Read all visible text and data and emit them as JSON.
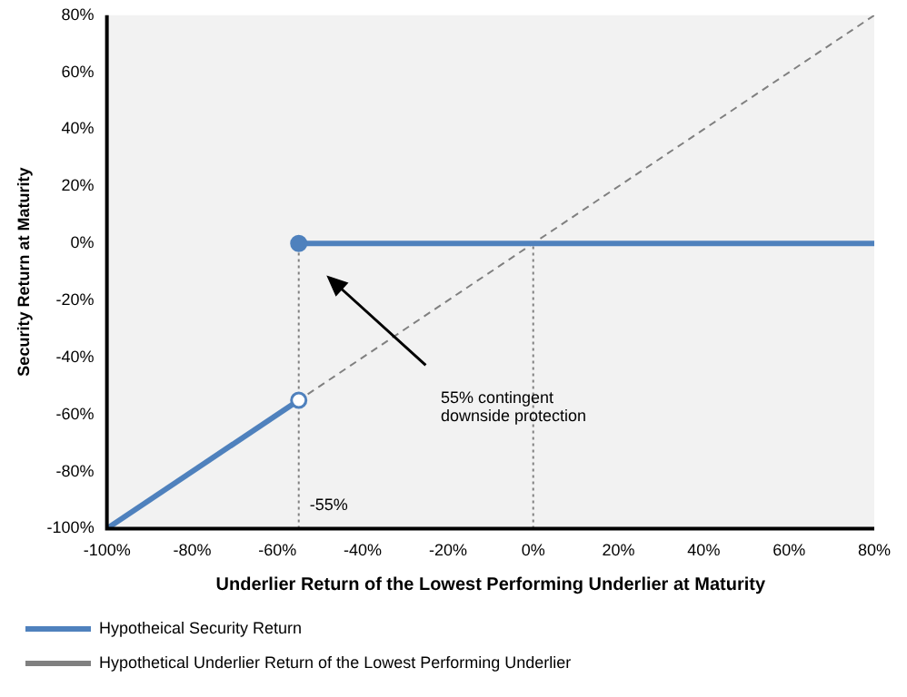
{
  "chart_data": {
    "type": "line",
    "xlabel": "Underlier Return of the Lowest Performing Underlier at Maturity",
    "ylabel": "Security Return at Maturity",
    "xlim": [
      -100,
      80
    ],
    "ylim": [
      -100,
      80
    ],
    "xticks": [
      {
        "value": -100,
        "label": "-100%"
      },
      {
        "value": -80,
        "label": "-80%"
      },
      {
        "value": -60,
        "label": "-60%"
      },
      {
        "value": -40,
        "label": "-40%"
      },
      {
        "value": -20,
        "label": "-20%"
      },
      {
        "value": 0,
        "label": "0%"
      },
      {
        "value": 20,
        "label": "20%"
      },
      {
        "value": 40,
        "label": "40%"
      },
      {
        "value": 60,
        "label": "60%"
      },
      {
        "value": 80,
        "label": "80%"
      }
    ],
    "yticks": [
      {
        "value": -100,
        "label": "-100%"
      },
      {
        "value": -80,
        "label": "-80%"
      },
      {
        "value": -60,
        "label": "-60%"
      },
      {
        "value": -40,
        "label": "-40%"
      },
      {
        "value": -20,
        "label": "-20%"
      },
      {
        "value": 0,
        "label": "0%"
      },
      {
        "value": 20,
        "label": "20%"
      },
      {
        "value": 40,
        "label": "40%"
      },
      {
        "value": 60,
        "label": "60%"
      },
      {
        "value": 80,
        "label": "80%"
      }
    ],
    "series": [
      {
        "name": "Hypotheical Security Return",
        "color": "#4f81bd",
        "x": [
          -100,
          -55
        ],
        "values": [
          -100,
          -55
        ],
        "line_style": "solid",
        "marker": "none"
      },
      {
        "color": "#4f81bd",
        "x": [
          -55,
          80
        ],
        "values": [
          0,
          0
        ],
        "line_style": "solid",
        "marker": "none"
      },
      {
        "name": "Hypothetical Underlier Return of the Lowest Performing Underlier",
        "color": "#808080",
        "x": [
          -100,
          80
        ],
        "values": [
          -100,
          80
        ],
        "line_style": "dashed",
        "marker": "none"
      },
      {
        "type": "scatter",
        "color": "#4f81bd",
        "x": [
          -55
        ],
        "values": [
          0
        ],
        "marker": "circle"
      },
      {
        "type": "scatter",
        "color": "#ffffff",
        "x": [
          -55
        ],
        "values": [
          -55
        ],
        "marker": "circle"
      }
    ],
    "ref_lines": [
      {
        "axis": "x",
        "value": -55,
        "label": "-55%",
        "color": "#808080",
        "line_style": "dotted"
      },
      {
        "axis": "x",
        "value": 0,
        "color": "#808080",
        "line_style": "dotted"
      }
    ],
    "annotations": [
      "55% contingent downside protection"
    ],
    "grid": false,
    "legend": "bottom"
  }
}
